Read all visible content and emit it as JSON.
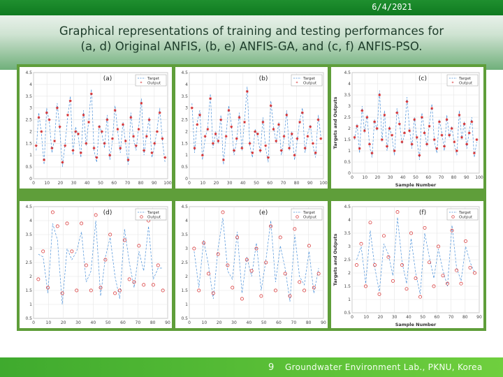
{
  "header": {
    "date": "6/4/2021"
  },
  "slide": {
    "title_line1": "Graphical representations of training and testing performances for",
    "title_line2": "(a, d) Original ANFIS, (b, e) ANFIS-GA, and (c, f) ANFIS-PSO."
  },
  "footer": {
    "page": "9",
    "lab": "Groundwater Environment Lab., PKNU, Korea"
  },
  "colors": {
    "target": "#4a90d9",
    "output": "#d62728",
    "frame": "#5f9e3a"
  },
  "chart_data": [
    {
      "id": "a",
      "type": "scatter",
      "label": "(a)",
      "xlabel": "",
      "ylabel": "",
      "xlim": [
        0,
        100
      ],
      "ylim": [
        0,
        4.5
      ],
      "xticks": [
        0,
        10,
        20,
        30,
        40,
        50,
        60,
        70,
        80,
        90,
        100
      ],
      "yticks": [
        0,
        0.5,
        1,
        1.5,
        2,
        2.5,
        3,
        3.5,
        4,
        4.5
      ],
      "legend": [
        "Target",
        "Output"
      ],
      "series": [
        {
          "name": "Target",
          "values": [
            1.2,
            2.8,
            1.9,
            0.6,
            3.0,
            2.4,
            1.1,
            1.7,
            3.2,
            2.1,
            0.5,
            1.5,
            2.6,
            3.5,
            1.0,
            2.2,
            1.8,
            0.9,
            2.9,
            1.4,
            2.5,
            3.8,
            1.2,
            0.7,
            2.3,
            1.9,
            1.3,
            2.7,
            0.8,
            1.6,
            3.1,
            2.0,
            1.1,
            2.4,
            1.5,
            0.6,
            2.8,
            1.7,
            1.2,
            2.2,
            3.4,
            1.0,
            1.9,
            2.6,
            0.9,
            1.4,
            2.1,
            3.0,
            1.6,
            0.7
          ]
        },
        {
          "name": "Output",
          "values": [
            1.4,
            2.6,
            2.0,
            0.8,
            2.8,
            2.5,
            1.3,
            1.6,
            3.0,
            2.2,
            0.7,
            1.4,
            2.7,
            3.3,
            1.2,
            2.0,
            1.9,
            1.1,
            2.7,
            1.5,
            2.4,
            3.6,
            1.3,
            0.9,
            2.2,
            2.0,
            1.5,
            2.5,
            1.0,
            1.7,
            2.9,
            2.1,
            1.3,
            2.3,
            1.6,
            0.8,
            2.6,
            1.8,
            1.4,
            2.1,
            3.2,
            1.2,
            1.8,
            2.5,
            1.1,
            1.5,
            2.0,
            2.8,
            1.7,
            0.9
          ]
        }
      ]
    },
    {
      "id": "b",
      "type": "scatter",
      "label": "(b)",
      "xlabel": "",
      "ylabel": "",
      "xlim": [
        0,
        100
      ],
      "ylim": [
        0,
        4.5
      ],
      "xticks": [
        0,
        10,
        20,
        30,
        40,
        50,
        60,
        70,
        80,
        90,
        100
      ],
      "yticks": [
        0,
        0.5,
        1,
        1.5,
        2,
        2.5,
        3,
        3.5,
        4,
        4.5
      ],
      "legend": [
        "Target",
        "Output"
      ],
      "series": [
        {
          "name": "Target",
          "values": [
            3.2,
            1.1,
            2.4,
            2.9,
            0.8,
            1.7,
            2.2,
            3.6,
            1.3,
            2.0,
            1.5,
            2.7,
            0.6,
            1.9,
            3.1,
            2.3,
            1.0,
            1.6,
            2.8,
            1.2,
            2.5,
            3.9,
            1.4,
            0.9,
            2.1,
            1.8,
            1.1,
            2.6,
            1.3,
            0.7,
            3.3,
            2.2,
            1.5,
            2.4,
            1.0,
            1.7,
            2.9,
            1.2,
            2.0,
            0.8,
            1.6,
            2.5,
            3.0,
            1.1,
            1.9,
            2.3,
            1.4,
            0.9,
            2.7,
            1.8
          ]
        },
        {
          "name": "Output",
          "values": [
            3.0,
            1.3,
            2.3,
            2.7,
            1.0,
            1.8,
            2.1,
            3.4,
            1.5,
            1.9,
            1.6,
            2.5,
            0.8,
            1.8,
            2.9,
            2.2,
            1.2,
            1.7,
            2.6,
            1.3,
            2.4,
            3.7,
            1.5,
            1.1,
            2.0,
            1.9,
            1.2,
            2.4,
            1.4,
            0.9,
            3.1,
            2.1,
            1.6,
            2.3,
            1.2,
            1.8,
            2.7,
            1.3,
            1.9,
            1.0,
            1.7,
            2.4,
            2.8,
            1.3,
            1.8,
            2.2,
            1.5,
            1.1,
            2.5,
            1.7
          ]
        }
      ]
    },
    {
      "id": "c",
      "type": "scatter",
      "label": "(c)",
      "xlabel": "Sample Number",
      "ylabel": "Targets and Outputs",
      "xlim": [
        0,
        100
      ],
      "ylim": [
        0,
        4.5
      ],
      "xticks": [
        0,
        10,
        20,
        30,
        40,
        50,
        60,
        70,
        80,
        90,
        100
      ],
      "yticks": [
        0,
        0.5,
        1,
        1.5,
        2,
        2.5,
        3,
        3.5,
        4,
        4.5
      ],
      "legend": [
        "Target",
        "Output"
      ],
      "series": [
        {
          "name": "Target",
          "values": [
            1.5,
            2.2,
            0.9,
            3.0,
            1.8,
            2.6,
            1.2,
            0.7,
            2.4,
            1.9,
            3.7,
            1.4,
            2.8,
            1.0,
            2.1,
            1.6,
            0.8,
            2.9,
            2.3,
            1.3,
            1.7,
            3.4,
            2.0,
            1.1,
            2.5,
            1.5,
            0.6,
            2.7,
            1.9,
            1.2,
            2.2,
            3.1,
            1.4,
            0.9,
            2.4,
            1.8,
            1.0,
            2.6,
            1.6,
            2.1,
            1.3,
            0.8,
            2.8,
            1.5,
            2.3,
            1.1,
            1.9,
            2.5,
            0.7,
            1.4
          ]
        },
        {
          "name": "Output",
          "values": [
            1.6,
            2.1,
            1.1,
            2.8,
            1.9,
            2.5,
            1.3,
            0.9,
            2.3,
            2.0,
            3.5,
            1.5,
            2.6,
            1.2,
            2.0,
            1.7,
            1.0,
            2.7,
            2.2,
            1.4,
            1.8,
            3.2,
            1.9,
            1.3,
            2.4,
            1.6,
            0.8,
            2.5,
            1.8,
            1.3,
            2.1,
            2.9,
            1.5,
            1.1,
            2.3,
            1.7,
            1.2,
            2.4,
            1.7,
            2.0,
            1.4,
            1.0,
            2.6,
            1.6,
            2.2,
            1.3,
            1.8,
            2.3,
            0.9,
            1.5
          ]
        }
      ]
    },
    {
      "id": "d",
      "type": "scatter",
      "label": "(d)",
      "xlabel": "",
      "ylabel": "",
      "xlim": [
        0,
        90
      ],
      "ylim": [
        0.5,
        4.5
      ],
      "xticks": [
        0,
        10,
        20,
        30,
        40,
        50,
        60,
        70,
        80,
        90
      ],
      "yticks": [
        0.5,
        1,
        1.5,
        2,
        2.5,
        3,
        3.5,
        4,
        4.5
      ],
      "legend": [
        "Target",
        "Output"
      ],
      "series": [
        {
          "name": "Target",
          "values": [
            2.8,
            2.7,
            1.4,
            3.9,
            3.3,
            1.0,
            3.0,
            2.6,
            2.9,
            3.6,
            1.8,
            2.2,
            4.0,
            1.3,
            2.7,
            3.4,
            2.0,
            1.2,
            3.7,
            2.5,
            1.6,
            2.9,
            2.2,
            3.8,
            1.9,
            2.3,
            2.3
          ]
        },
        {
          "name": "Output",
          "values": [
            1.9,
            2.9,
            1.6,
            4.3,
            3.8,
            1.4,
            3.9,
            2.9,
            1.5,
            3.9,
            2.4,
            1.5,
            4.2,
            1.6,
            2.6,
            3.5,
            1.4,
            1.5,
            3.3,
            1.9,
            1.8,
            3.1,
            1.7,
            4.0,
            1.7,
            2.4,
            1.5
          ]
        }
      ]
    },
    {
      "id": "e",
      "type": "scatter",
      "label": "(e)",
      "xlabel": "",
      "ylabel": "",
      "xlim": [
        0,
        90
      ],
      "ylim": [
        0.5,
        4.5
      ],
      "xticks": [
        0,
        10,
        20,
        30,
        40,
        50,
        60,
        70,
        80,
        90
      ],
      "yticks": [
        0.5,
        1,
        1.5,
        2,
        2.5,
        3,
        3.5,
        4,
        4.5
      ],
      "legend": [
        "Target",
        "Output"
      ],
      "series": [
        {
          "name": "Target",
          "values": [
            2.9,
            1.6,
            3.3,
            2.4,
            1.2,
            3.0,
            4.1,
            2.2,
            1.9,
            3.6,
            1.4,
            2.7,
            2.0,
            3.2,
            1.5,
            2.6,
            4.0,
            1.8,
            3.1,
            2.3,
            1.1,
            3.5,
            2.0,
            1.7,
            2.9,
            1.4,
            2.3
          ]
        },
        {
          "name": "Output",
          "values": [
            3.0,
            1.5,
            3.2,
            2.1,
            1.4,
            2.8,
            4.3,
            2.4,
            1.6,
            3.4,
            1.2,
            2.6,
            2.2,
            3.0,
            1.3,
            2.5,
            3.8,
            1.5,
            3.4,
            2.1,
            1.3,
            3.7,
            1.8,
            1.5,
            3.1,
            1.6,
            2.1
          ]
        }
      ]
    },
    {
      "id": "f",
      "type": "scatter",
      "label": "(f)",
      "xlabel": "Sample Number",
      "ylabel": "Targets and Outputs",
      "xlim": [
        0,
        90
      ],
      "ylim": [
        0.5,
        4.5
      ],
      "xticks": [
        0,
        10,
        20,
        30,
        40,
        50,
        60,
        70,
        80,
        90
      ],
      "yticks": [
        0.5,
        1,
        1.5,
        2,
        2.5,
        3,
        3.5,
        4,
        4.5
      ],
      "legend": [
        "Target",
        "Output"
      ],
      "series": [
        {
          "name": "Target",
          "values": [
            2.5,
            3.0,
            1.6,
            3.6,
            2.2,
            1.3,
            3.1,
            2.7,
            1.9,
            4.1,
            2.4,
            1.6,
            3.3,
            2.0,
            1.2,
            3.5,
            2.6,
            1.8,
            2.9,
            2.1,
            1.5,
            3.8,
            2.2,
            1.7,
            3.0,
            2.4,
            2.0
          ]
        },
        {
          "name": "Output",
          "values": [
            2.3,
            3.1,
            1.5,
            3.9,
            2.3,
            1.2,
            3.4,
            2.6,
            1.7,
            4.3,
            2.3,
            1.4,
            3.5,
            1.8,
            1.1,
            3.7,
            2.4,
            1.5,
            3.0,
            1.9,
            1.6,
            3.6,
            2.1,
            1.6,
            3.2,
            2.2,
            2.0
          ]
        }
      ]
    }
  ]
}
